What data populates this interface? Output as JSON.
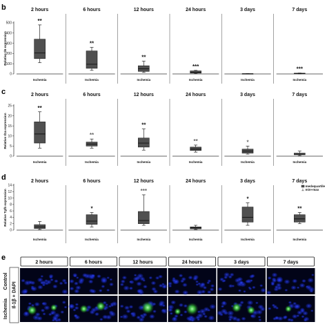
{
  "time_points": [
    "2 hours",
    "6 hours",
    "12 hours",
    "24 hours",
    "3 days",
    "7 days"
  ],
  "panel_letters": [
    "b",
    "c",
    "d",
    "e"
  ],
  "legend": {
    "box_label": "med±quartile",
    "whisker_label": "min÷max"
  },
  "chart_data": [
    {
      "type": "box",
      "panel": "b",
      "ylabel": "Relative Il6 expression",
      "ylim": [
        0,
        500
      ],
      "yticks": [
        0,
        100,
        200,
        300,
        400,
        500
      ],
      "grid": false,
      "categories": [
        "2 hours",
        "6 hours",
        "12 hours",
        "24 hours",
        "3 days",
        "7 days"
      ],
      "xlabel": "Ischemia",
      "boxes": [
        {
          "min": 110,
          "q1": 150,
          "median": 205,
          "q3": 340,
          "max": 480
        },
        {
          "min": 35,
          "q1": 55,
          "median": 95,
          "q3": 225,
          "max": 260
        },
        {
          "min": 15,
          "q1": 25,
          "median": 50,
          "q3": 80,
          "max": 125
        },
        {
          "min": 3,
          "q1": 8,
          "median": 15,
          "q3": 30,
          "max": 35
        },
        {
          "min": 0,
          "q1": 1,
          "median": 2,
          "q3": 3,
          "max": 4
        },
        {
          "min": 1,
          "q1": 3,
          "median": 5,
          "q3": 7,
          "max": 9
        }
      ],
      "significance": [
        "**",
        "**",
        "**",
        "***",
        "",
        "***"
      ]
    },
    {
      "type": "box",
      "panel": "c",
      "ylabel": "Relative Il1a expression",
      "ylim": [
        0,
        25
      ],
      "yticks": [
        0,
        5,
        10,
        15,
        20,
        25
      ],
      "grid": false,
      "categories": [
        "2 hours",
        "6 hours",
        "12 hours",
        "24 hours",
        "3 days",
        "7 days"
      ],
      "xlabel": "Ischemia",
      "boxes": [
        {
          "min": 4,
          "q1": 6.5,
          "median": 11,
          "q3": 17,
          "max": 22
        },
        {
          "min": 4,
          "q1": 5,
          "median": 6,
          "q3": 7,
          "max": 8.5
        },
        {
          "min": 3,
          "q1": 4.5,
          "median": 6.5,
          "q3": 9,
          "max": 13.5
        },
        {
          "min": 2,
          "q1": 2.8,
          "median": 3.5,
          "q3": 4.5,
          "max": 5.5
        },
        {
          "min": 1,
          "q1": 1.5,
          "median": 2.5,
          "q3": 3.5,
          "max": 5
        },
        {
          "min": 0.3,
          "q1": 0.7,
          "median": 1,
          "q3": 1.5,
          "max": 2.5
        }
      ],
      "significance": [
        "**",
        "**",
        "**",
        "**",
        "*",
        ""
      ]
    },
    {
      "type": "box",
      "panel": "d",
      "ylabel": "Relative Tgfb expression",
      "ylim": [
        0,
        14
      ],
      "yticks": [
        0,
        2,
        4,
        6,
        8,
        10,
        12,
        14
      ],
      "grid": false,
      "categories": [
        "2 hours",
        "6 hours",
        "12 hours",
        "24 hours",
        "3 days",
        "7 days"
      ],
      "xlabel": "Ischemia",
      "boxes": [
        {
          "min": 0.2,
          "q1": 0.5,
          "median": 1,
          "q3": 1.7,
          "max": 2.7
        },
        {
          "min": 1,
          "q1": 1.8,
          "median": 2.8,
          "q3": 4.8,
          "max": 5.5
        },
        {
          "min": 1.5,
          "q1": 2,
          "median": 3,
          "q3": 5.8,
          "max": 11
        },
        {
          "min": 0.2,
          "q1": 0.4,
          "median": 0.7,
          "q3": 1,
          "max": 1.5
        },
        {
          "min": 1.5,
          "q1": 2.5,
          "median": 4,
          "q3": 7.2,
          "max": 8.5
        },
        {
          "min": 2,
          "q1": 2.5,
          "median": 3.5,
          "q3": 4.8,
          "max": 5.5
        }
      ],
      "significance": [
        "",
        "*",
        "***",
        "",
        "*",
        "**"
      ]
    }
  ],
  "micrographs": {
    "row_labels": [
      "Control",
      "Ischemia"
    ],
    "stain_label": "Il-1β + DAPI"
  }
}
